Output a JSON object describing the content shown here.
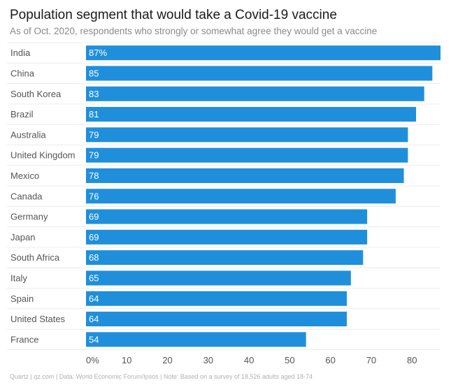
{
  "chart_data": {
    "type": "bar",
    "orientation": "horizontal",
    "title": "Population segment that would take a Covid-19 vaccine",
    "subtitle": "As of Oct. 2020, respondents who strongly or somewhat agree they would get a vaccine",
    "categories": [
      "India",
      "China",
      "South Korea",
      "Brazil",
      "Australia",
      "United Kingdom",
      "Mexico",
      "Canada",
      "Germany",
      "Japan",
      "South Africa",
      "Italy",
      "Spain",
      "United States",
      "France"
    ],
    "values": [
      87,
      85,
      83,
      81,
      79,
      79,
      78,
      76,
      69,
      69,
      68,
      65,
      64,
      64,
      54
    ],
    "value_labels": [
      "87%",
      "85",
      "83",
      "81",
      "79",
      "79",
      "78",
      "76",
      "69",
      "69",
      "68",
      "65",
      "64",
      "64",
      "54"
    ],
    "xlim": [
      0,
      87
    ],
    "xticks": [
      0,
      10,
      20,
      30,
      40,
      50,
      60,
      70,
      80
    ],
    "xtick_labels": [
      "0%",
      "10",
      "20",
      "30",
      "40",
      "50",
      "60",
      "70",
      "80"
    ],
    "xlabel": "",
    "ylabel": "",
    "grid": true,
    "bar_color": "#1f8fdb",
    "source": "Quartz | qz.com | Data: World Economic Forum/Ipsos | Note: Based on a survey of 18,526 adults aged 18-74"
  }
}
